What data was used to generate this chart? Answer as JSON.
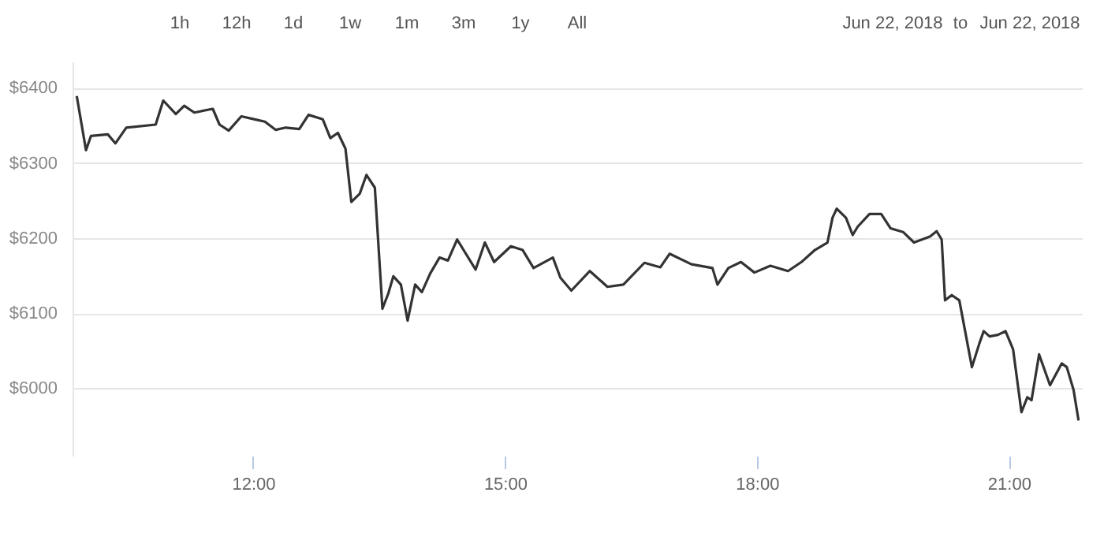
{
  "chart_data": {
    "type": "line",
    "annotations": [
      "1h",
      "12h",
      "1d",
      "1w",
      "1m",
      "3m",
      "1y",
      "All",
      "Jun 22, 2018",
      "to",
      "Jun 22, 2018"
    ],
    "x": [
      9.9,
      10.01,
      10.07,
      10.27,
      10.36,
      10.49,
      10.84,
      10.93,
      11.08,
      11.18,
      11.3,
      11.52,
      11.6,
      11.71,
      11.86,
      12.02,
      12.14,
      12.27,
      12.39,
      12.55,
      12.66,
      12.83,
      12.92,
      13.01,
      13.1,
      13.17,
      13.27,
      13.35,
      13.45,
      13.54,
      13.61,
      13.67,
      13.76,
      13.84,
      13.93,
      14.01,
      14.11,
      14.22,
      14.32,
      14.43,
      14.65,
      14.76,
      14.87,
      15.07,
      15.21,
      15.34,
      15.57,
      15.66,
      15.79,
      16.01,
      16.22,
      16.41,
      16.66,
      16.85,
      16.96,
      17.22,
      17.47,
      17.53,
      17.66,
      17.81,
      17.97,
      18.16,
      18.37,
      18.53,
      18.69,
      18.84,
      18.9,
      18.95,
      19.06,
      19.14,
      19.2,
      19.34,
      19.48,
      19.59,
      19.74,
      19.87,
      20.06,
      20.14,
      20.2,
      20.24,
      20.32,
      20.41,
      20.56,
      20.65,
      20.7,
      20.77,
      20.87,
      20.96,
      21.05,
      21.15,
      21.22,
      21.27,
      21.36,
      21.49,
      21.63,
      21.69,
      21.77,
      21.83
    ],
    "series": [
      {
        "color": "#333333",
        "values": [
          6389,
          6317,
          6336,
          6338,
          6326,
          6347,
          6351,
          6383,
          6365,
          6376,
          6367,
          6372,
          6351,
          6343,
          6362,
          6358,
          6355,
          6344,
          6347,
          6345,
          6364,
          6358,
          6333,
          6340,
          6319,
          6248,
          6259,
          6284,
          6267,
          6106,
          6126,
          6149,
          6138,
          6090,
          6138,
          6128,
          6153,
          6174,
          6170,
          6198,
          6158,
          6194,
          6168,
          6189,
          6184,
          6160,
          6174,
          6147,
          6130,
          6156,
          6135,
          6138,
          6167,
          6161,
          6179,
          6165,
          6160,
          6138,
          6160,
          6168,
          6154,
          6163,
          6156,
          6168,
          6184,
          6194,
          6227,
          6239,
          6227,
          6204,
          6215,
          6232,
          6232,
          6213,
          6208,
          6194,
          6202,
          6209,
          6198,
          6117,
          6124,
          6117,
          6028,
          6060,
          6076,
          6069,
          6071,
          6076,
          6052,
          5968,
          5988,
          5984,
          6045,
          6004,
          6033,
          6028,
          5998,
          5957
        ]
      }
    ],
    "xlim": [
      9.85,
      21.87
    ],
    "xticks": [
      {
        "value": 12,
        "label": "12:00"
      },
      {
        "value": 15,
        "label": "15:00"
      },
      {
        "value": 18,
        "label": "18:00"
      },
      {
        "value": 21,
        "label": "21:00"
      }
    ],
    "ylim": [
      5910,
      6435
    ],
    "yticks": [
      {
        "value": 6000,
        "label": "$6000"
      },
      {
        "value": 6100,
        "label": "$6100"
      },
      {
        "value": 6200,
        "label": "$6200"
      },
      {
        "value": 6300,
        "label": "$6300"
      },
      {
        "value": 6400,
        "label": "$6400"
      }
    ],
    "grid": "y",
    "marker": "none",
    "line_style": "solid"
  }
}
